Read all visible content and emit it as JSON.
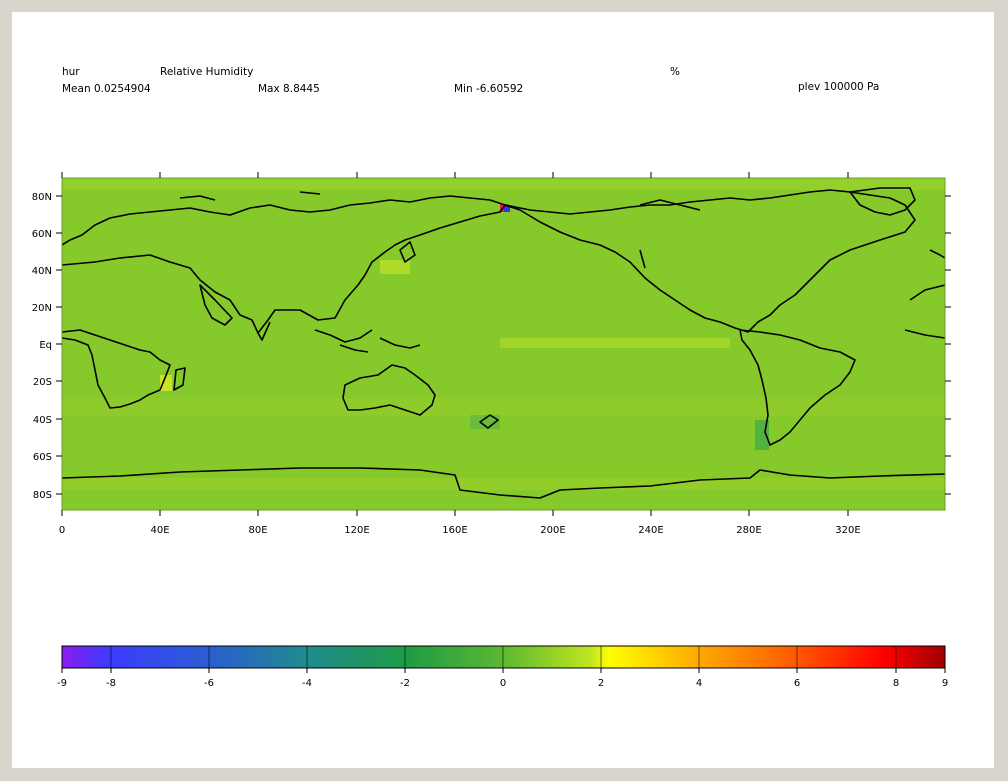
{
  "header": {
    "variable": "hur",
    "long_name": "Relative Humidity",
    "units": "%",
    "mean": "Mean 0.0254904",
    "max": "Max 8.8445",
    "min": "Min -6.60592",
    "level": "plev 100000 Pa"
  },
  "axes": {
    "lat_labels": [
      "80N",
      "60N",
      "40N",
      "20N",
      "Eq",
      "20S",
      "40S",
      "60S",
      "80S"
    ],
    "lon_labels": [
      "0",
      "40E",
      "80E",
      "120E",
      "160E",
      "200E",
      "240E",
      "280E",
      "320E"
    ]
  },
  "colorbar": {
    "labels": [
      "-9",
      "-8",
      "-6",
      "-4",
      "-2",
      "0",
      "2",
      "4",
      "6",
      "8",
      "9"
    ],
    "colors": [
      "#8a1cf0",
      "#3c3cff",
      "#2a5fd0",
      "#1f8c8c",
      "#1e9b46",
      "#5cb832",
      "#c2e61e",
      "#ffff00",
      "#ffaa00",
      "#ff5a00",
      "#ff0000",
      "#a00000"
    ]
  },
  "map": {
    "background_color": "#86c92a",
    "coastline_color": "#000000"
  }
}
